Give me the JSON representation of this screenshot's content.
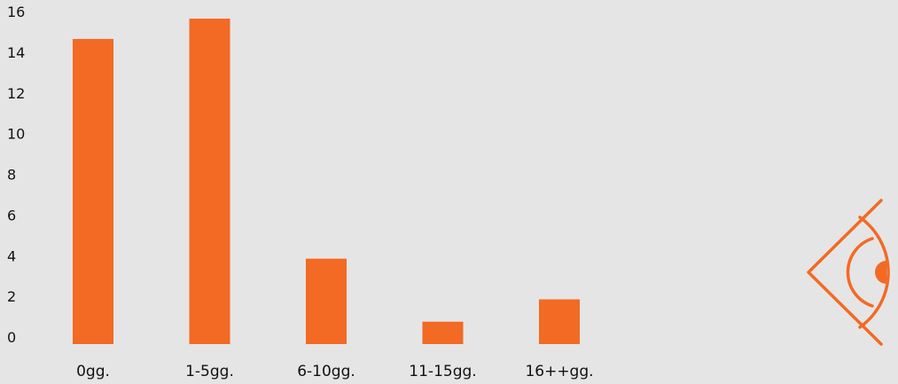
{
  "chart_data": {
    "type": "bar",
    "categories": [
      "0gg.",
      "1-5gg.",
      "6-10gg.",
      "11-15gg.",
      "16++gg."
    ],
    "values": [
      15,
      16,
      4.2,
      1.1,
      2.2
    ],
    "ylim": [
      0,
      16
    ],
    "yticks": [
      0,
      2,
      4,
      6,
      8,
      10,
      12,
      14,
      16
    ],
    "title": "",
    "xlabel": "",
    "ylabel": "",
    "grid": false,
    "bar_color": "#f26a24"
  },
  "logo": {
    "icon": "eye-icon",
    "color": "#f26a24"
  }
}
